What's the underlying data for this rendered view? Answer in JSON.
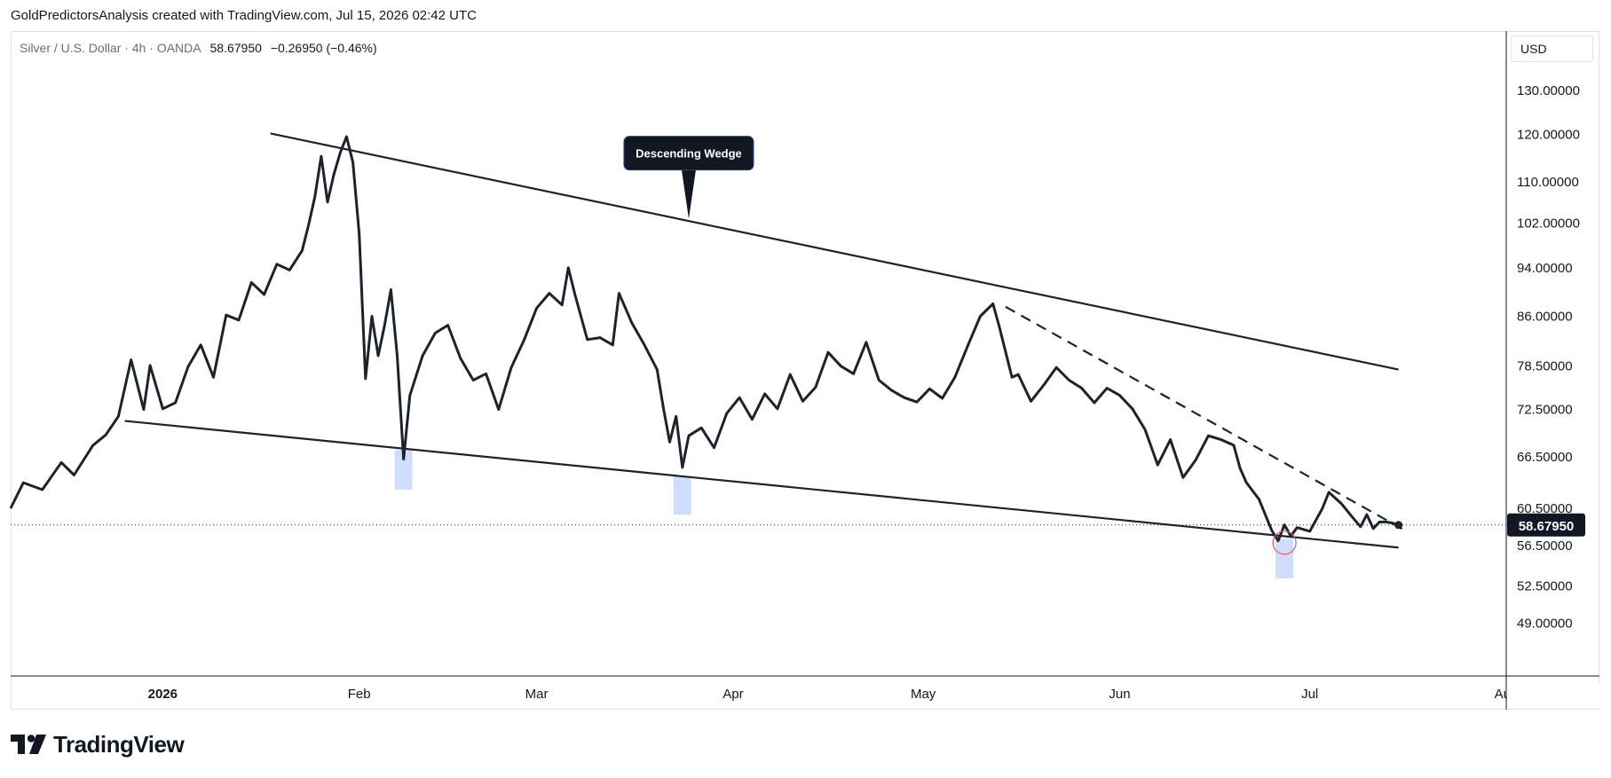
{
  "caption": "GoldPredictorsAnalysis created with TradingView.com, Jul 15, 2026 02:42 UTC",
  "legend": {
    "symbol": "Silver / U.S. Dollar · 4h · OANDA",
    "last": "58.67950",
    "change": "−0.26950 (−0.46%)"
  },
  "currency_button": "USD",
  "brand": {
    "name": "TradingView"
  },
  "colors": {
    "price_line": "#1e222d",
    "highlight": "#c9d7fb",
    "badge_bg": "#131722",
    "marker": "#e05a5a"
  },
  "chart_data": {
    "type": "line",
    "y_scale": "log",
    "x_range": [
      "2025-12-08",
      "2026-08-01"
    ],
    "ylim": [
      44.5,
      145
    ],
    "y_ticks": [
      "130.00000",
      "120.00000",
      "110.00000",
      "102.00000",
      "94.00000",
      "86.00000",
      "78.50000",
      "72.50000",
      "66.50000",
      "60.50000",
      "56.50000",
      "52.50000",
      "49.00000"
    ],
    "x_ticks": [
      {
        "date": "2026-01-01",
        "label": "2026"
      },
      {
        "date": "2026-02-01",
        "label": "Feb"
      },
      {
        "date": "2026-03-01",
        "label": "Mar"
      },
      {
        "date": "2026-04-01",
        "label": "Apr"
      },
      {
        "date": "2026-05-01",
        "label": "May"
      },
      {
        "date": "2026-06-01",
        "label": "Jun"
      },
      {
        "date": "2026-07-01",
        "label": "Jul"
      },
      {
        "date": "2026-08-01",
        "label": "Aug"
      }
    ],
    "current_price": 58.6795,
    "current_price_label": "58.67950",
    "series": [
      {
        "points": [
          [
            "2025-12-08",
            60.5
          ],
          [
            "2025-12-10",
            63.4
          ],
          [
            "2025-12-13",
            62.6
          ],
          [
            "2025-12-16",
            65.8
          ],
          [
            "2025-12-18",
            64.3
          ],
          [
            "2025-12-21",
            67.9
          ],
          [
            "2025-12-23",
            69.2
          ],
          [
            "2025-12-25",
            71.6
          ],
          [
            "2025-12-27",
            79.4
          ],
          [
            "2025-12-29",
            72.5
          ],
          [
            "2025-12-30",
            78.6
          ],
          [
            "2026-01-01",
            72.6
          ],
          [
            "2026-01-03",
            73.4
          ],
          [
            "2026-01-05",
            78.4
          ],
          [
            "2026-01-07",
            81.6
          ],
          [
            "2026-01-09",
            76.9
          ],
          [
            "2026-01-11",
            86.2
          ],
          [
            "2026-01-13",
            85.4
          ],
          [
            "2026-01-15",
            91.5
          ],
          [
            "2026-01-17",
            89.5
          ],
          [
            "2026-01-19",
            94.6
          ],
          [
            "2026-01-21",
            93.6
          ],
          [
            "2026-01-23",
            97.0
          ],
          [
            "2026-01-24",
            101.6
          ],
          [
            "2026-01-25",
            107.0
          ],
          [
            "2026-01-26",
            115.3
          ],
          [
            "2026-01-27",
            106.0
          ],
          [
            "2026-01-28",
            111.5
          ],
          [
            "2026-01-29",
            116.0
          ],
          [
            "2026-01-30",
            119.5
          ],
          [
            "2026-01-31",
            114.0
          ],
          [
            "2026-02-01",
            100.0
          ],
          [
            "2026-02-02",
            76.7
          ],
          [
            "2026-02-03",
            86.0
          ],
          [
            "2026-02-04",
            80.0
          ],
          [
            "2026-02-05",
            84.6
          ],
          [
            "2026-02-06",
            90.3
          ],
          [
            "2026-02-07",
            80.0
          ],
          [
            "2026-02-08",
            66.2
          ],
          [
            "2026-02-09",
            74.4
          ],
          [
            "2026-02-11",
            80.0
          ],
          [
            "2026-02-13",
            83.4
          ],
          [
            "2026-02-15",
            84.6
          ],
          [
            "2026-02-17",
            79.6
          ],
          [
            "2026-02-19",
            76.5
          ],
          [
            "2026-02-21",
            77.4
          ],
          [
            "2026-02-23",
            72.5
          ],
          [
            "2026-02-25",
            78.3
          ],
          [
            "2026-02-27",
            82.3
          ],
          [
            "2026-03-01",
            87.3
          ],
          [
            "2026-03-03",
            89.7
          ],
          [
            "2026-03-05",
            87.8
          ],
          [
            "2026-03-06",
            94.0
          ],
          [
            "2026-03-07",
            89.7
          ],
          [
            "2026-03-09",
            82.4
          ],
          [
            "2026-03-11",
            82.7
          ],
          [
            "2026-03-13",
            81.6
          ],
          [
            "2026-03-14",
            89.7
          ],
          [
            "2026-03-16",
            85.0
          ],
          [
            "2026-03-18",
            81.6
          ],
          [
            "2026-03-20",
            78.0
          ],
          [
            "2026-03-21",
            72.7
          ],
          [
            "2026-03-22",
            68.3
          ],
          [
            "2026-03-23",
            71.6
          ],
          [
            "2026-03-24",
            65.2
          ],
          [
            "2026-03-25",
            69.1
          ],
          [
            "2026-03-27",
            70.1
          ],
          [
            "2026-03-29",
            67.6
          ],
          [
            "2026-03-31",
            72.0
          ],
          [
            "2026-04-02",
            74.1
          ],
          [
            "2026-04-04",
            71.2
          ],
          [
            "2026-04-06",
            74.6
          ],
          [
            "2026-04-08",
            72.6
          ],
          [
            "2026-04-10",
            77.3
          ],
          [
            "2026-04-12",
            73.6
          ],
          [
            "2026-04-14",
            75.5
          ],
          [
            "2026-04-16",
            80.5
          ],
          [
            "2026-04-18",
            78.5
          ],
          [
            "2026-04-20",
            77.4
          ],
          [
            "2026-04-22",
            82.0
          ],
          [
            "2026-04-24",
            76.5
          ],
          [
            "2026-04-26",
            75.1
          ],
          [
            "2026-04-28",
            74.1
          ],
          [
            "2026-04-30",
            73.5
          ],
          [
            "2026-05-02",
            75.3
          ],
          [
            "2026-05-04",
            74.0
          ],
          [
            "2026-05-06",
            76.9
          ],
          [
            "2026-05-08",
            81.4
          ],
          [
            "2026-05-10",
            86.0
          ],
          [
            "2026-05-12",
            88.0
          ],
          [
            "2026-05-13",
            84.4
          ],
          [
            "2026-05-15",
            76.9
          ],
          [
            "2026-05-16",
            77.3
          ],
          [
            "2026-05-18",
            73.6
          ],
          [
            "2026-05-20",
            75.8
          ],
          [
            "2026-05-22",
            78.3
          ],
          [
            "2026-05-24",
            76.5
          ],
          [
            "2026-05-26",
            75.4
          ],
          [
            "2026-05-28",
            73.4
          ],
          [
            "2026-05-30",
            75.4
          ],
          [
            "2026-06-01",
            74.4
          ],
          [
            "2026-06-03",
            72.6
          ],
          [
            "2026-06-05",
            69.9
          ],
          [
            "2026-06-07",
            65.5
          ],
          [
            "2026-06-09",
            68.6
          ],
          [
            "2026-06-11",
            64.0
          ],
          [
            "2026-06-13",
            66.1
          ],
          [
            "2026-06-15",
            69.1
          ],
          [
            "2026-06-17",
            68.6
          ],
          [
            "2026-06-19",
            67.9
          ],
          [
            "2026-06-20",
            65.1
          ],
          [
            "2026-06-21",
            63.4
          ],
          [
            "2026-06-23",
            61.5
          ],
          [
            "2026-06-25",
            58.1
          ],
          [
            "2026-06-26",
            57.0
          ],
          [
            "2026-06-27",
            58.7
          ],
          [
            "2026-06-28",
            57.5
          ],
          [
            "2026-06-29",
            58.4
          ],
          [
            "2026-07-01",
            58.0
          ],
          [
            "2026-07-03",
            60.5
          ],
          [
            "2026-07-04",
            62.3
          ],
          [
            "2026-07-06",
            61.0
          ],
          [
            "2026-07-08",
            59.3
          ],
          [
            "2026-07-09",
            58.5
          ],
          [
            "2026-07-10",
            59.8
          ],
          [
            "2026-07-11",
            58.3
          ],
          [
            "2026-07-12",
            59.0
          ],
          [
            "2026-07-13",
            59.0
          ],
          [
            "2026-07-14",
            58.9
          ],
          [
            "2026-07-15",
            58.68
          ]
        ]
      }
    ],
    "trendlines": [
      {
        "style": "solid",
        "from": [
          "2026-01-18",
          120.2
        ],
        "to": [
          "2026-07-15",
          78.0
        ]
      },
      {
        "style": "solid",
        "from": [
          "2025-12-26",
          71.0
        ],
        "to": [
          "2026-07-15",
          56.3
        ]
      },
      {
        "style": "dashed",
        "from": [
          "2026-05-14",
          87.5
        ],
        "to": [
          "2026-07-16",
          58.1
        ]
      }
    ],
    "highlight_bars": [
      {
        "date": "2026-02-08",
        "from": 62.6,
        "to": 67.3
      },
      {
        "date": "2026-03-24",
        "from": 59.8,
        "to": 64.2
      },
      {
        "date": "2026-06-27",
        "from": 53.2,
        "to": 57.2
      }
    ],
    "marker_circle": {
      "date": "2026-06-27",
      "price": 56.8
    },
    "annotations": [
      {
        "text": "Descending Wedge",
        "anchor": [
          "2026-03-25",
          102.8
        ]
      }
    ]
  }
}
